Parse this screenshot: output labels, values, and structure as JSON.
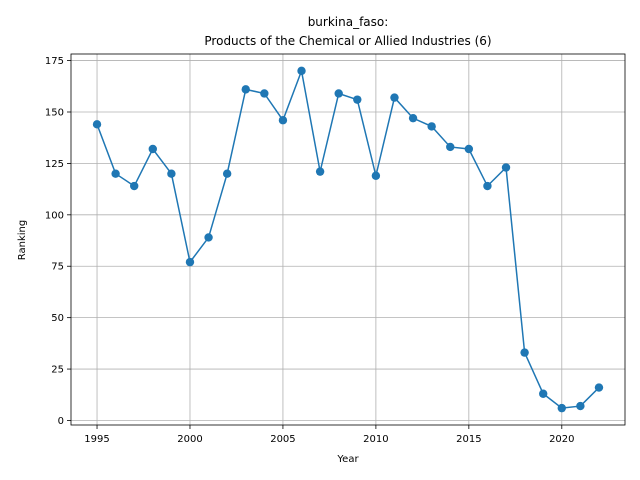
{
  "chart_data": {
    "type": "line",
    "title_line1": "burkina_faso:",
    "title_line2": "Products of the Chemical or Allied Industries (6)",
    "xlabel": "Year",
    "ylabel": "Ranking",
    "xlim": [
      1993.6,
      2023.4
    ],
    "ylim": [
      -2.2,
      178.2
    ],
    "xticks": [
      1995,
      2000,
      2005,
      2010,
      2015,
      2020
    ],
    "yticks": [
      0,
      25,
      50,
      75,
      100,
      125,
      150,
      175
    ],
    "grid": true,
    "line_color": "#1f77b4",
    "series": [
      {
        "x": [
          1995,
          1996,
          1997,
          1998,
          1999,
          2000,
          2001,
          2002,
          2003,
          2004,
          2005,
          2006,
          2007,
          2008,
          2009,
          2010,
          2011,
          2012,
          2013,
          2014,
          2015,
          2016,
          2017,
          2018,
          2019,
          2020,
          2021,
          2022
        ],
        "y": [
          144,
          120,
          114,
          132,
          120,
          77,
          89,
          120,
          161,
          159,
          146,
          170,
          121,
          159,
          156,
          119,
          157,
          147,
          143,
          133,
          132,
          114,
          123,
          33,
          13,
          6,
          7,
          16
        ]
      }
    ]
  }
}
